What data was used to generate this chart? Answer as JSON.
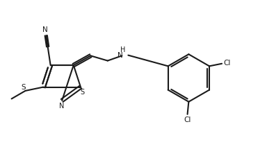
{
  "bg_color": "#ffffff",
  "line_color": "#1a1a1a",
  "line_width": 1.5,
  "figsize": [
    3.84,
    2.12
  ],
  "dpi": 100,
  "xlim": [
    0,
    10.5
  ],
  "ylim": [
    0,
    5.8
  ]
}
